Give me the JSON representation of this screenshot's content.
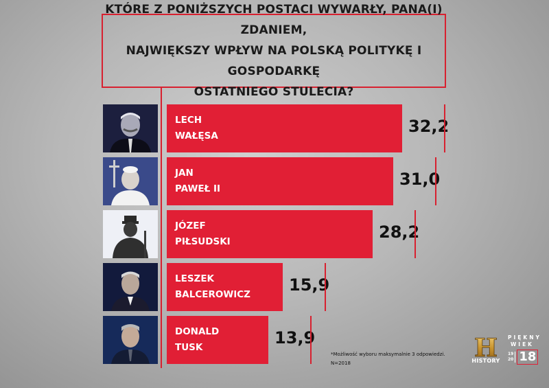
{
  "title_lines": [
    "KTÓRE Z PONIŻSZYCH POSTACI WYWARŁY, PANA(I) ZDANIEM,",
    "NAJWIĘKSZY WPŁYW NA POLSKĄ POLITYKĘ I GOSPODARKĘ",
    "OSTATNIEGO STULECIA?"
  ],
  "footnote": {
    "line1": "*Możliwość wyboru maksymalnie 3 odpowiedzi.",
    "line2": "N=2018"
  },
  "logos": {
    "history_letter": "H",
    "history_text": "HISTORY",
    "piekny_line1": "PIĘKNY",
    "piekny_line2": "WIEK",
    "year_small_top": "19",
    "year_small_bottom": "20",
    "year_big": "18"
  },
  "colors": {
    "bar": "#e11f35",
    "accent_line": "#d8202f",
    "background": "#b7b7b7"
  },
  "chart_data": {
    "type": "bar",
    "orientation": "horizontal",
    "title": "KTÓRE Z PONIŻSZYCH POSTACI WYWARŁY, PANA(I) ZDANIEM, NAJWIĘKSZY WPŁYW NA POLSKĄ POLITYKĘ I GOSPODARKĘ OSTATNIEGO STULECIA?",
    "items": [
      {
        "name_line1": "LECH",
        "name_line2": "WAŁĘSA",
        "value": 32.2,
        "value_label": "32,2",
        "photo": "portrait-walesa"
      },
      {
        "name_line1": "JAN",
        "name_line2": "PAWEŁ II",
        "value": 31.0,
        "value_label": "31,0",
        "photo": "portrait-john-paul-ii"
      },
      {
        "name_line1": "JÓZEF",
        "name_line2": "PIŁSUDSKI",
        "value": 28.2,
        "value_label": "28,2",
        "photo": "statue-pilsudski"
      },
      {
        "name_line1": "LESZEK",
        "name_line2": "BALCEROWICZ",
        "value": 15.9,
        "value_label": "15,9",
        "photo": "portrait-balcerowicz"
      },
      {
        "name_line1": "DONALD",
        "name_line2": "TUSK",
        "value": 13.9,
        "value_label": "13,9",
        "photo": "portrait-tusk"
      }
    ],
    "xlim": [
      0,
      35
    ],
    "grid": false,
    "legend": "none"
  }
}
